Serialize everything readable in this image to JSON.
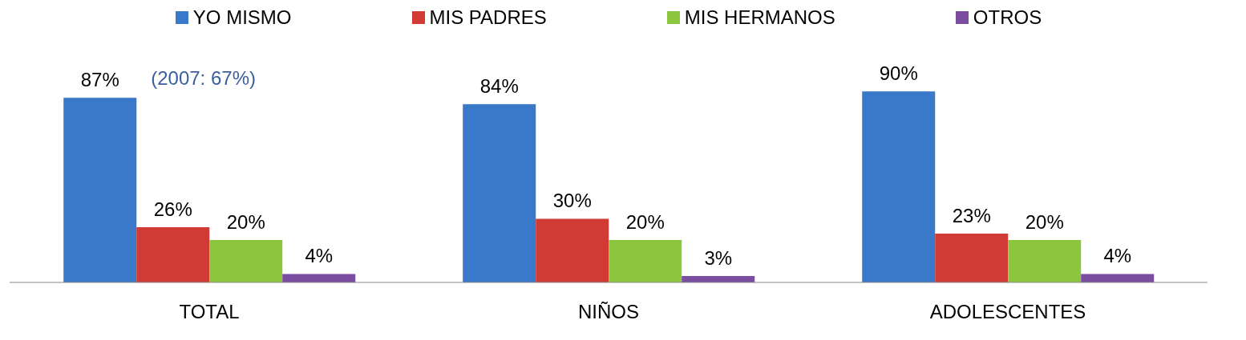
{
  "chart_data": {
    "type": "bar",
    "categories": [
      "TOTAL",
      "NIÑOS",
      "ADOLESCENTES"
    ],
    "series": [
      {
        "name": "YO MISMO",
        "color": "#3a78c9",
        "values": [
          87,
          84,
          90
        ],
        "value_labels": [
          "87%",
          "84%",
          "90%"
        ]
      },
      {
        "name": "MIS PADRES",
        "color": "#d23a35",
        "values": [
          26,
          30,
          23
        ],
        "value_labels": [
          "26%",
          "30%",
          "23%"
        ]
      },
      {
        "name": "MIS HERMANOS",
        "color": "#8cc63f",
        "values": [
          20,
          20,
          20
        ],
        "value_labels": [
          "20%",
          "20%",
          "20%"
        ]
      },
      {
        "name": "OTROS",
        "color": "#7a4da0",
        "values": [
          4,
          3,
          4
        ],
        "value_labels": [
          "4%",
          "3%",
          "4%"
        ]
      }
    ],
    "legend": "top",
    "annotations": [
      "(2007: 67%)"
    ]
  }
}
